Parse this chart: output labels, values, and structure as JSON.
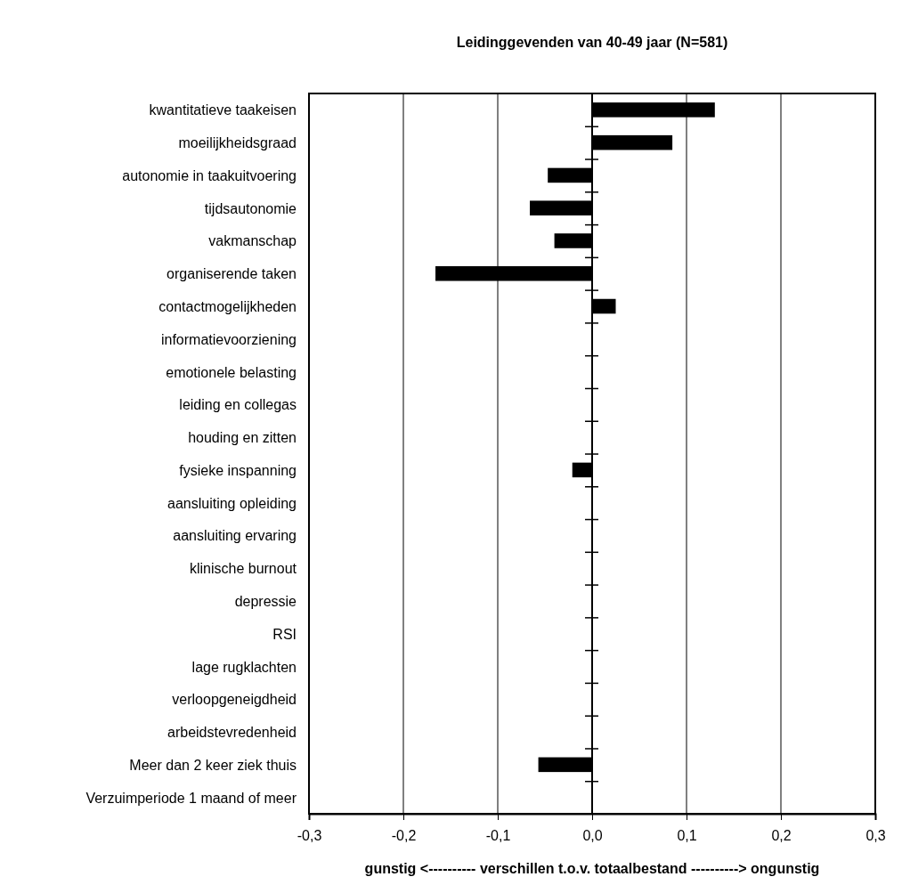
{
  "chart_data": {
    "type": "bar",
    "orientation": "horizontal",
    "title": "Leidinggevenden van 40-49 jaar (N=581)",
    "xlabel": "gunstig <---------- verschillen t.o.v. totaalbestand ----------> ongunstig",
    "categories": [
      "kwantitatieve taakeisen",
      "moeilijkheidsgraad",
      "autonomie in taakuitvoering",
      "tijdsautonomie",
      "vakmanschap",
      "organiserende taken",
      "contactmogelijkheden",
      "informatievoorziening",
      "emotionele belasting",
      "leiding en collegas",
      "houding en zitten",
      "fysieke inspanning",
      "aansluiting opleiding",
      "aansluiting ervaring",
      "klinische burnout ",
      "depressie",
      "RSI",
      "lage rugklachten",
      "verloopgeneigdheid",
      "arbeidstevredenheid",
      "Meer dan 2 keer ziek thuis",
      "Verzuimperiode 1 maand of meer"
    ],
    "values": [
      0.13,
      0.085,
      -0.047,
      -0.066,
      -0.04,
      -0.166,
      0.025,
      0,
      0,
      0,
      0,
      -0.021,
      0,
      0,
      0,
      0,
      0,
      0,
      0,
      0,
      -0.057,
      0
    ],
    "color": "#000000",
    "xlim": [
      -0.3,
      0.3
    ],
    "xticks": [
      {
        "value": -0.3,
        "label": "-0,3"
      },
      {
        "value": -0.2,
        "label": "-0,2"
      },
      {
        "value": -0.1,
        "label": "-0,1"
      },
      {
        "value": 0,
        "label": "0,0"
      },
      {
        "value": 0.1,
        "label": "0,1"
      },
      {
        "value": 0.2,
        "label": "0,2"
      },
      {
        "value": 0.3,
        "label": "0,3"
      }
    ],
    "grid": "x"
  }
}
